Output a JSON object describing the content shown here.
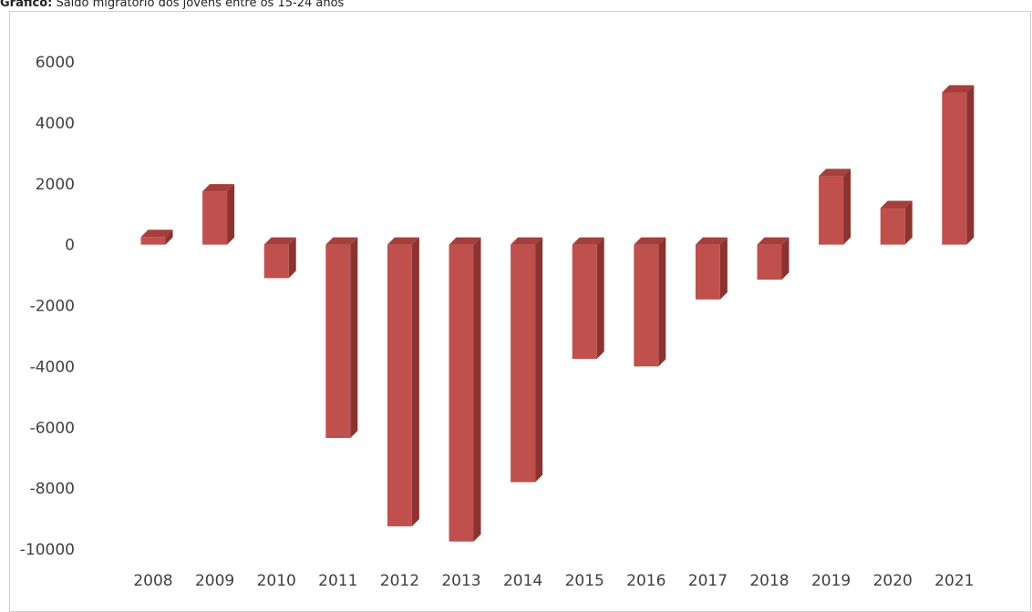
{
  "caption": {
    "label": "Gráfico:",
    "text": "Saldo migratório dos jovens entre os 15-24 anos"
  },
  "chart_data": {
    "type": "bar",
    "title": "Gráfico: Saldo migratório dos jovens entre os 15-24 anos",
    "categories": [
      "2008",
      "2009",
      "2010",
      "2011",
      "2012",
      "2013",
      "2014",
      "2015",
      "2016",
      "2017",
      "2018",
      "2019",
      "2020",
      "2021"
    ],
    "values": [
      250,
      1750,
      -1100,
      -6350,
      -9250,
      -9750,
      -7800,
      -3750,
      -4000,
      -1800,
      -1150,
      2250,
      1200,
      5000
    ],
    "yticks": [
      6000,
      4000,
      2000,
      0,
      -2000,
      -4000,
      -6000,
      -8000,
      -10000
    ],
    "ylim": [
      -10000,
      6000
    ],
    "grid": false,
    "legend": "none",
    "colors": {
      "bar_front": "#c0504d",
      "bar_side": "#8c3230",
      "bar_top": "#a43f3c"
    }
  }
}
